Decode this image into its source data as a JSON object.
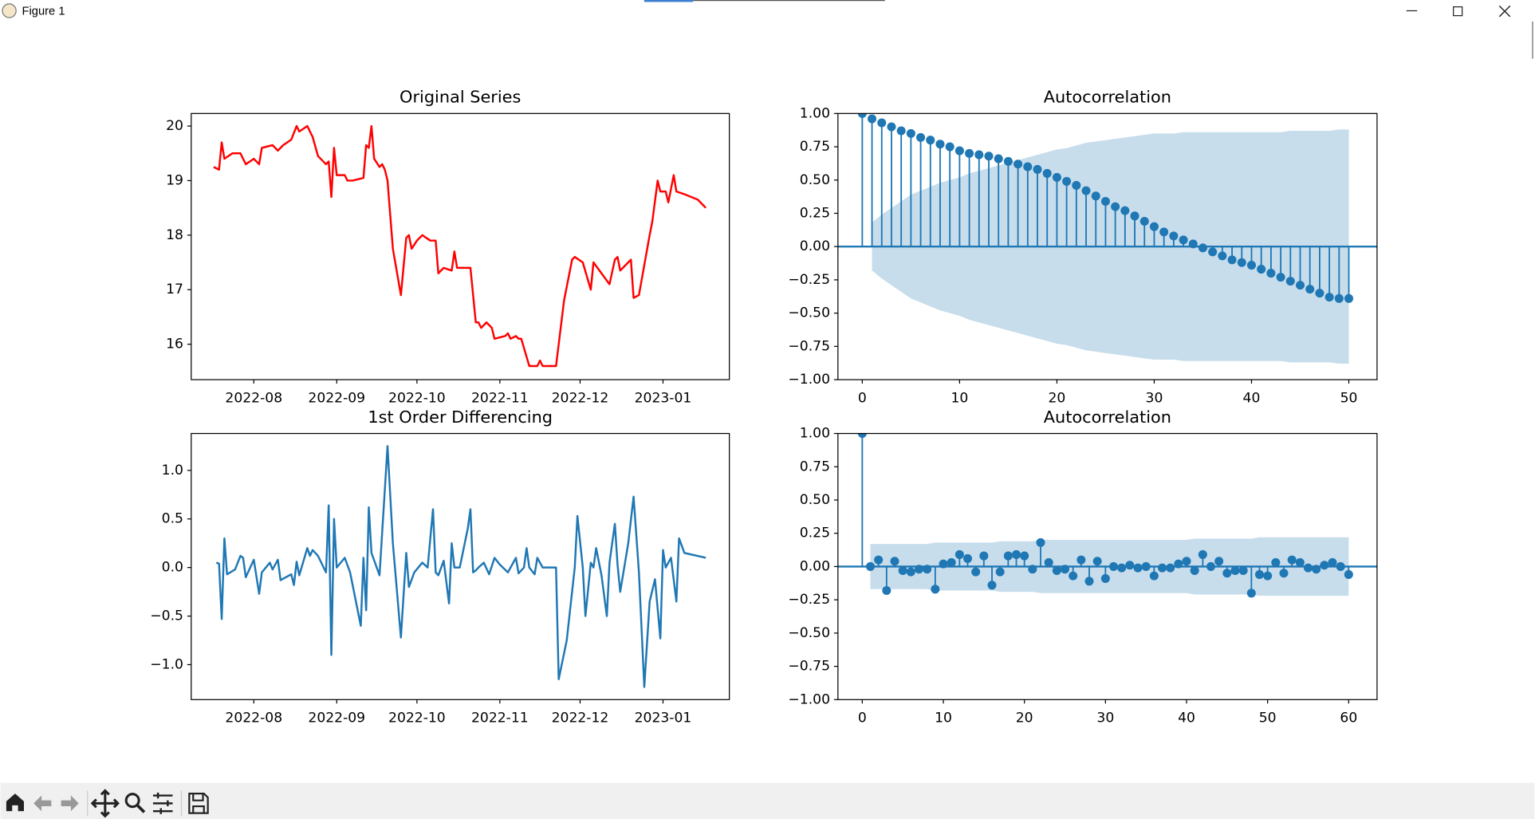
{
  "window": {
    "title": "Figure 1"
  },
  "chart_data": [
    {
      "type": "line",
      "title": "Original Series",
      "color": "#ff0000",
      "x": [
        19190,
        19192,
        19193,
        19194,
        19197,
        19200,
        19202,
        19205,
        19207,
        19208,
        19212,
        19214,
        19216,
        19219,
        19221,
        19222,
        19225,
        19227,
        19229,
        19232,
        19233,
        19234,
        19235,
        19236,
        19239,
        19240,
        19242,
        19246,
        19247,
        19248,
        19249,
        19250,
        19252,
        19253,
        19254,
        19255,
        19257,
        19260,
        19262,
        19263,
        19264,
        19266,
        19268,
        19271,
        19273,
        19274,
        19276,
        19279,
        19280,
        19281,
        19286,
        19288,
        19289,
        19290,
        19292,
        19294,
        19295,
        19299,
        19300,
        19301,
        19303,
        19304,
        19305,
        19308,
        19311,
        19312,
        19313,
        19318,
        19321,
        19324,
        19325,
        19328,
        19331,
        19332,
        19335,
        19338,
        19340,
        19341,
        19342,
        19346,
        19347,
        19349,
        19353,
        19354,
        19356,
        19357,
        19359,
        19360,
        19362,
        19363,
        19366,
        19371,
        19374
      ],
      "values": [
        19.25,
        19.2,
        19.7,
        19.4,
        19.5,
        19.5,
        19.3,
        19.4,
        19.3,
        19.6,
        19.65,
        19.55,
        19.65,
        19.75,
        20.0,
        19.9,
        20.0,
        19.8,
        19.45,
        19.3,
        19.35,
        18.7,
        19.6,
        19.1,
        19.1,
        19.0,
        19.0,
        19.05,
        19.65,
        19.6,
        20.0,
        19.4,
        19.25,
        19.3,
        19.2,
        19.0,
        17.75,
        16.9,
        17.95,
        18.0,
        17.75,
        17.9,
        18.0,
        17.9,
        17.9,
        17.3,
        17.4,
        17.35,
        17.7,
        17.4,
        17.4,
        16.4,
        16.4,
        16.3,
        16.4,
        16.3,
        16.1,
        16.15,
        16.2,
        16.1,
        16.15,
        16.1,
        16.1,
        15.6,
        15.6,
        15.7,
        15.6,
        15.6,
        16.8,
        17.55,
        17.6,
        17.5,
        17.0,
        17.5,
        17.3,
        17.1,
        17.55,
        17.6,
        17.35,
        17.55,
        16.85,
        16.9,
        18.0,
        18.25,
        19.0,
        18.8,
        18.8,
        18.6,
        19.1,
        18.8,
        18.75,
        18.65,
        18.5
      ],
      "xlim": [
        19181.6,
        19382.8
      ],
      "xticks": [
        {
          "value": 19205,
          "label": "2022-08"
        },
        {
          "value": 19236,
          "label": "2022-09"
        },
        {
          "value": 19266,
          "label": "2022-10"
        },
        {
          "value": 19297,
          "label": "2022-11"
        },
        {
          "value": 19327,
          "label": "2022-12"
        },
        {
          "value": 19358,
          "label": "2023-01"
        }
      ],
      "ylim": [
        15.35,
        20.23
      ],
      "yticks": [
        16,
        17,
        18,
        19,
        20
      ]
    },
    {
      "type": "acf",
      "title": "Autocorrelation",
      "color": "#1f77b4",
      "x": [
        0,
        1,
        2,
        3,
        4,
        5,
        6,
        7,
        8,
        9,
        10,
        11,
        12,
        13,
        14,
        15,
        16,
        17,
        18,
        19,
        20,
        21,
        22,
        23,
        24,
        25,
        26,
        27,
        28,
        29,
        30,
        31,
        32,
        33,
        34,
        35,
        36,
        37,
        38,
        39,
        40,
        41,
        42,
        43,
        44,
        45,
        46,
        47,
        48,
        49,
        50
      ],
      "values": [
        1.0,
        0.96,
        0.93,
        0.9,
        0.87,
        0.85,
        0.82,
        0.8,
        0.77,
        0.75,
        0.72,
        0.7,
        0.69,
        0.68,
        0.66,
        0.64,
        0.62,
        0.6,
        0.58,
        0.55,
        0.52,
        0.49,
        0.46,
        0.42,
        0.38,
        0.34,
        0.3,
        0.27,
        0.23,
        0.19,
        0.15,
        0.11,
        0.08,
        0.05,
        0.02,
        -0.01,
        -0.04,
        -0.07,
        -0.1,
        -0.12,
        -0.14,
        -0.17,
        -0.2,
        -0.23,
        -0.26,
        -0.29,
        -0.32,
        -0.35,
        -0.38,
        -0.39,
        -0.39
      ],
      "confint": [
        null,
        0.18,
        0.24,
        0.29,
        0.34,
        0.39,
        0.42,
        0.45,
        0.48,
        0.5,
        0.52,
        0.55,
        0.57,
        0.59,
        0.61,
        0.63,
        0.65,
        0.67,
        0.69,
        0.71,
        0.73,
        0.74,
        0.76,
        0.78,
        0.79,
        0.8,
        0.81,
        0.82,
        0.83,
        0.84,
        0.85,
        0.85,
        0.85,
        0.86,
        0.86,
        0.86,
        0.86,
        0.86,
        0.86,
        0.86,
        0.86,
        0.86,
        0.86,
        0.86,
        0.87,
        0.87,
        0.87,
        0.87,
        0.87,
        0.88,
        0.88
      ],
      "xlim": [
        -2.5,
        52.9
      ],
      "xticks": [
        0,
        10,
        20,
        30,
        40,
        50
      ],
      "ylim": [
        -1,
        1
      ],
      "yticks": [
        {
          "value": -1,
          "label": "−1.00"
        },
        {
          "value": -0.75,
          "label": "−0.75"
        },
        {
          "value": -0.5,
          "label": "−0.50"
        },
        {
          "value": -0.25,
          "label": "−0.25"
        },
        {
          "value": 0,
          "label": "0.00"
        },
        {
          "value": 0.25,
          "label": "0.25"
        },
        {
          "value": 0.5,
          "label": "0.50"
        },
        {
          "value": 0.75,
          "label": "0.75"
        },
        {
          "value": 1,
          "label": "1.00"
        }
      ]
    },
    {
      "type": "line",
      "title": "1st Order Differencing",
      "color": "#1f77b4",
      "x": [
        19191,
        19192,
        19193,
        19194,
        19195,
        19198,
        19200,
        19201,
        19202,
        19205,
        19207,
        19208,
        19211,
        19212,
        19214,
        19215,
        19219,
        19220,
        19221,
        19222,
        19225,
        19226,
        19227,
        19229,
        19232,
        19233,
        19234,
        19235,
        19236,
        19239,
        19241,
        19245,
        19246,
        19247,
        19248,
        19249,
        19252,
        19255,
        19257,
        19260,
        19262,
        19263,
        19265,
        19268,
        19270,
        19272,
        19273,
        19274,
        19276,
        19278,
        19279,
        19280,
        19282,
        19285,
        19286,
        19287,
        19288,
        19289,
        19291,
        19293,
        19295,
        19297,
        19300,
        19303,
        19304,
        19306,
        19307,
        19308,
        19310,
        19311,
        19313,
        19318,
        19319,
        19322,
        19325,
        19326,
        19328,
        19329,
        19331,
        19332,
        19333,
        19335,
        19337,
        19338,
        19340,
        19341,
        19342,
        19345,
        19347,
        19349,
        19351,
        19353,
        19355,
        19357,
        19358,
        19359,
        19361,
        19363,
        19364,
        19366,
        19374
      ],
      "values": [
        0.05,
        0.04,
        -0.53,
        0.3,
        -0.07,
        -0.02,
        0.12,
        0.1,
        -0.1,
        0.08,
        -0.27,
        -0.05,
        0.05,
        -0.02,
        0.08,
        -0.13,
        -0.07,
        -0.18,
        0.06,
        -0.08,
        0.2,
        0.12,
        0.18,
        0.12,
        -0.05,
        0.64,
        -0.9,
        0.5,
        0.0,
        0.1,
        -0.05,
        -0.6,
        0.1,
        -0.44,
        0.62,
        0.15,
        -0.08,
        1.25,
        0.25,
        -0.72,
        0.15,
        -0.2,
        -0.05,
        0.05,
        0.0,
        0.6,
        -0.05,
        -0.08,
        0.07,
        -0.37,
        0.25,
        0.0,
        0.0,
        0.4,
        0.6,
        -0.05,
        -0.03,
        0.0,
        0.05,
        -0.07,
        0.1,
        0.03,
        -0.05,
        0.1,
        -0.06,
        0.0,
        0.2,
        0.0,
        -0.07,
        0.1,
        0.0,
        0.0,
        -1.15,
        -0.75,
        0.0,
        0.53,
        0.0,
        -0.5,
        0.05,
        0.0,
        0.2,
        -0.08,
        -0.5,
        0.05,
        0.45,
        0.03,
        -0.25,
        0.25,
        0.73,
        -0.05,
        -1.23,
        -0.35,
        -0.12,
        -0.73,
        0.18,
        0.0,
        0.1,
        -0.35,
        0.3,
        0.15,
        0.1
      ],
      "xlim": [
        19181.6,
        19382.8
      ],
      "xticks": [
        {
          "value": 19205,
          "label": "2022-08"
        },
        {
          "value": 19236,
          "label": "2022-09"
        },
        {
          "value": 19266,
          "label": "2022-10"
        },
        {
          "value": 19297,
          "label": "2022-11"
        },
        {
          "value": 19327,
          "label": "2022-12"
        },
        {
          "value": 19358,
          "label": "2023-01"
        }
      ],
      "ylim": [
        -1.36,
        1.38
      ],
      "yticks": [
        {
          "value": -1,
          "label": "−1.0"
        },
        {
          "value": -0.5,
          "label": "−0.5"
        },
        {
          "value": 0,
          "label": "0.0"
        },
        {
          "value": 0.5,
          "label": "0.5"
        },
        {
          "value": 1,
          "label": "1.0"
        }
      ]
    },
    {
      "type": "acf",
      "title": "Autocorrelation",
      "color": "#1f77b4",
      "x": [
        0,
        1,
        2,
        3,
        4,
        5,
        6,
        7,
        8,
        9,
        10,
        11,
        12,
        13,
        14,
        15,
        16,
        17,
        18,
        19,
        20,
        21,
        22,
        23,
        24,
        25,
        26,
        27,
        28,
        29,
        30,
        31,
        32,
        33,
        34,
        35,
        36,
        37,
        38,
        39,
        40,
        41,
        42,
        43,
        44,
        45,
        46,
        47,
        48,
        49,
        50,
        51,
        52,
        53,
        54,
        55,
        56,
        57,
        58,
        59,
        60
      ],
      "values": [
        1.0,
        0.0,
        0.05,
        -0.18,
        0.04,
        -0.03,
        -0.04,
        -0.02,
        -0.02,
        -0.17,
        0.02,
        0.03,
        0.09,
        0.06,
        -0.04,
        0.08,
        -0.14,
        -0.04,
        0.08,
        0.09,
        0.08,
        -0.02,
        0.18,
        0.03,
        -0.03,
        -0.02,
        -0.07,
        0.05,
        -0.11,
        0.04,
        -0.09,
        0.0,
        -0.01,
        0.01,
        -0.01,
        0.0,
        -0.07,
        -0.01,
        -0.01,
        0.02,
        0.04,
        -0.03,
        0.09,
        0.0,
        0.04,
        -0.05,
        -0.03,
        -0.03,
        -0.2,
        -0.06,
        -0.07,
        0.03,
        -0.05,
        0.05,
        0.03,
        -0.01,
        -0.02,
        0.01,
        0.03,
        0.0,
        -0.06
      ],
      "confint": [
        null,
        0.17,
        0.17,
        0.17,
        0.17,
        0.17,
        0.17,
        0.17,
        0.17,
        0.18,
        0.18,
        0.18,
        0.18,
        0.18,
        0.18,
        0.18,
        0.18,
        0.19,
        0.19,
        0.19,
        0.19,
        0.19,
        0.2,
        0.2,
        0.2,
        0.2,
        0.2,
        0.2,
        0.2,
        0.2,
        0.2,
        0.2,
        0.2,
        0.2,
        0.2,
        0.2,
        0.2,
        0.2,
        0.2,
        0.2,
        0.2,
        0.21,
        0.21,
        0.21,
        0.21,
        0.21,
        0.21,
        0.21,
        0.21,
        0.22,
        0.22,
        0.22,
        0.22,
        0.22,
        0.22,
        0.22,
        0.22,
        0.22,
        0.22,
        0.22,
        0.22
      ],
      "xlim": [
        -3.0,
        63.5
      ],
      "xticks": [
        0,
        10,
        20,
        30,
        40,
        50,
        60
      ],
      "ylim": [
        -1,
        1
      ],
      "yticks": [
        {
          "value": -1,
          "label": "−1.00"
        },
        {
          "value": -0.75,
          "label": "−0.75"
        },
        {
          "value": -0.5,
          "label": "−0.50"
        },
        {
          "value": -0.25,
          "label": "−0.25"
        },
        {
          "value": 0,
          "label": "0.00"
        },
        {
          "value": 0.25,
          "label": "0.25"
        },
        {
          "value": 0.5,
          "label": "0.50"
        },
        {
          "value": 0.75,
          "label": "0.75"
        },
        {
          "value": 1,
          "label": "1.00"
        }
      ]
    }
  ]
}
